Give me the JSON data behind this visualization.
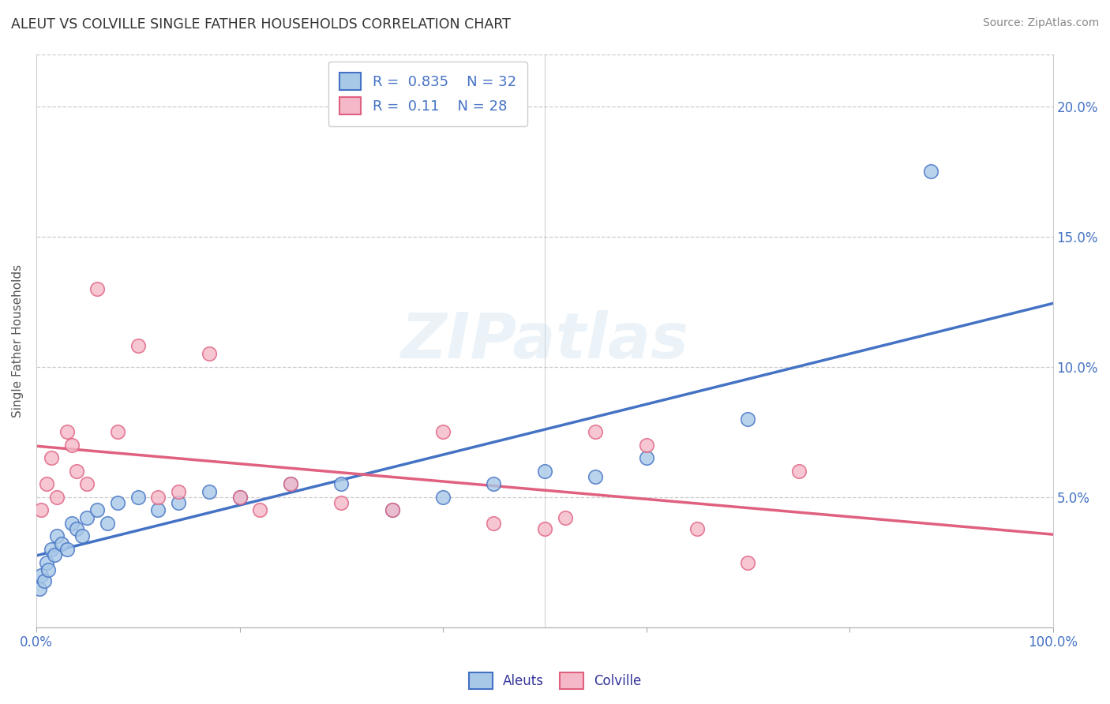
{
  "title": "ALEUT VS COLVILLE SINGLE FATHER HOUSEHOLDS CORRELATION CHART",
  "source": "Source: ZipAtlas.com",
  "ylabel": "Single Father Households",
  "legend_label1": "Aleuts",
  "legend_label2": "Colville",
  "R1": 0.835,
  "N1": 32,
  "R2": 0.11,
  "N2": 28,
  "color_aleuts_fill": "#a8c8e8",
  "color_aleuts_edge": "#4472c4",
  "color_colville_fill": "#f4b8c8",
  "color_colville_edge": "#e06080",
  "color_aleuts_line": "#4472c4",
  "color_colville_line": "#e06080",
  "bg_color": "#ffffff",
  "grid_color": "#cccccc",
  "watermark_text": "ZIPatlas",
  "aleuts_x": [
    0.3,
    0.5,
    0.8,
    1.0,
    1.2,
    1.5,
    1.8,
    2.0,
    2.5,
    3.0,
    3.5,
    4.0,
    4.5,
    5.0,
    6.0,
    7.0,
    8.0,
    10.0,
    12.0,
    14.0,
    17.0,
    20.0,
    25.0,
    30.0,
    35.0,
    40.0,
    45.0,
    50.0,
    55.0,
    60.0,
    70.0,
    88.0
  ],
  "aleuts_y": [
    1.5,
    2.0,
    1.8,
    2.5,
    2.2,
    3.0,
    2.8,
    3.5,
    3.2,
    3.0,
    4.0,
    3.8,
    3.5,
    4.2,
    4.5,
    4.0,
    4.8,
    5.0,
    4.5,
    4.8,
    5.2,
    5.0,
    5.5,
    5.5,
    4.5,
    5.0,
    5.5,
    6.0,
    5.8,
    6.5,
    8.0,
    17.5
  ],
  "colville_x": [
    0.5,
    1.0,
    1.5,
    2.0,
    3.0,
    3.5,
    4.0,
    5.0,
    6.0,
    8.0,
    10.0,
    12.0,
    14.0,
    17.0,
    20.0,
    22.0,
    25.0,
    30.0,
    35.0,
    40.0,
    45.0,
    50.0,
    52.0,
    55.0,
    60.0,
    65.0,
    70.0,
    75.0
  ],
  "colville_y": [
    4.5,
    5.5,
    6.5,
    5.0,
    7.5,
    7.0,
    6.0,
    5.5,
    13.0,
    7.5,
    10.8,
    5.0,
    5.2,
    10.5,
    5.0,
    4.5,
    5.5,
    4.8,
    4.5,
    7.5,
    4.0,
    3.8,
    4.2,
    7.5,
    7.0,
    3.8,
    2.5,
    6.0
  ],
  "xlim": [
    0,
    100
  ],
  "ylim": [
    0,
    22
  ],
  "ytick_right_labels": [
    "5.0%",
    "10.0%",
    "15.0%",
    "20.0%"
  ],
  "ytick_right_vals": [
    5,
    10,
    15,
    20
  ],
  "xtick_vals": [
    0,
    20,
    40,
    60,
    80,
    100
  ],
  "xtick_labels": [
    "0.0%",
    "",
    "",
    "",
    "",
    "100.0%"
  ],
  "title_color": "#333333",
  "ylabel_color": "#555555",
  "tick_color": "#4472c4",
  "source_color": "#888888",
  "legend_text_color": "#333399",
  "legend_r_color": "#4472c4"
}
